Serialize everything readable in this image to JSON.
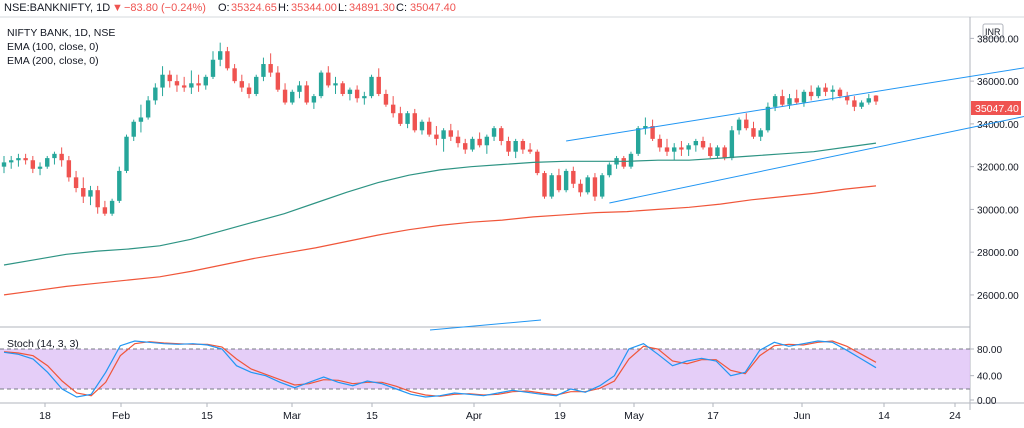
{
  "header": {
    "symbol": "NSE:BANKNIFTY, 1D",
    "change_arrow": "▼",
    "change": "−83.80 (−0.24%)",
    "open_label": "O:",
    "open": "35324.65",
    "high_label": "H:",
    "high": "35344.00",
    "low_label": "L:",
    "low": "34891.30",
    "close_label": "C:",
    "close": "35047.40"
  },
  "legend": {
    "title": "NIFTY BANK, 1D, NSE",
    "ema100": "EMA (100, close, 0)",
    "ema200": "EMA (200, close, 0)"
  },
  "currency": "INR",
  "last_price": "35047.40",
  "stoch_label": "Stoch (14, 3, 3)",
  "colors": {
    "up": "#26a69a",
    "down": "#ef5350",
    "ema100": "#2e9484",
    "ema200": "#f0563a",
    "channel": "#2196f3",
    "stoch_k": "#2196f3",
    "stoch_d": "#f0563a",
    "stoch_band": "#e1c6f7"
  },
  "chart_data": {
    "type": "candlestick",
    "price_axis": {
      "ticks": [
        "38000.00",
        "36000.00",
        "34000.00",
        "32000.00",
        "30000.00",
        "28000.00",
        "26000.00"
      ],
      "range": [
        24500,
        39000
      ]
    },
    "x_ticks": [
      "18",
      "Feb",
      "15",
      "Mar",
      "15",
      "Apr",
      "19",
      "May",
      "17",
      "Jun",
      "14",
      "24"
    ],
    "ohlc": [
      [
        32000,
        32500,
        31700,
        32200
      ],
      [
        32200,
        32500,
        31900,
        32300
      ],
      [
        32300,
        32600,
        32000,
        32400
      ],
      [
        32400,
        32600,
        32100,
        32300
      ],
      [
        32300,
        32500,
        31700,
        31900
      ],
      [
        31900,
        32200,
        31600,
        32000
      ],
      [
        32000,
        32500,
        31900,
        32400
      ],
      [
        32400,
        32700,
        32100,
        32600
      ],
      [
        32600,
        32900,
        32000,
        32300
      ],
      [
        32300,
        32500,
        31300,
        31500
      ],
      [
        31500,
        31800,
        30800,
        31000
      ],
      [
        31000,
        31500,
        30300,
        30600
      ],
      [
        30600,
        31100,
        30200,
        30900
      ],
      [
        30900,
        31100,
        29800,
        30100
      ],
      [
        30100,
        30400,
        29700,
        29800
      ],
      [
        29800,
        30500,
        29700,
        30400
      ],
      [
        30400,
        32000,
        30300,
        31800
      ],
      [
        31800,
        33500,
        31700,
        33400
      ],
      [
        33400,
        34200,
        33200,
        34100
      ],
      [
        34100,
        34900,
        33600,
        34300
      ],
      [
        34300,
        35300,
        34200,
        35100
      ],
      [
        35100,
        35900,
        34900,
        35700
      ],
      [
        35700,
        36700,
        35300,
        36300
      ],
      [
        36300,
        36500,
        35700,
        36000
      ],
      [
        36000,
        36300,
        35500,
        35800
      ],
      [
        35800,
        36200,
        35500,
        35700
      ],
      [
        35700,
        36500,
        35400,
        35900
      ],
      [
        35900,
        36300,
        35500,
        35800
      ],
      [
        35800,
        36300,
        35600,
        36200
      ],
      [
        36200,
        37400,
        36100,
        37000
      ],
      [
        37000,
        37800,
        36700,
        37400
      ],
      [
        37400,
        37600,
        36500,
        36600
      ],
      [
        36600,
        36800,
        35900,
        36000
      ],
      [
        36000,
        36300,
        35500,
        35700
      ],
      [
        35700,
        35900,
        35200,
        35400
      ],
      [
        35400,
        36300,
        35300,
        36200
      ],
      [
        36200,
        37100,
        36000,
        36800
      ],
      [
        36800,
        37300,
        36200,
        36400
      ],
      [
        36400,
        36700,
        35500,
        35600
      ],
      [
        35600,
        35900,
        34900,
        35000
      ],
      [
        35000,
        35600,
        34900,
        35500
      ],
      [
        35500,
        36000,
        35200,
        35800
      ],
      [
        35800,
        36000,
        34900,
        35000
      ],
      [
        35000,
        35400,
        34700,
        35300
      ],
      [
        35300,
        36500,
        35200,
        36400
      ],
      [
        36400,
        36700,
        35700,
        35800
      ],
      [
        35800,
        36200,
        35400,
        35900
      ],
      [
        35900,
        36000,
        35300,
        35400
      ],
      [
        35400,
        35700,
        35100,
        35600
      ],
      [
        35600,
        35800,
        35000,
        35200
      ],
      [
        35200,
        35500,
        34900,
        35300
      ],
      [
        35300,
        36300,
        35200,
        36200
      ],
      [
        36200,
        36600,
        35300,
        35400
      ],
      [
        35400,
        35600,
        34800,
        34900
      ],
      [
        34900,
        35300,
        34300,
        34500
      ],
      [
        34500,
        34800,
        33900,
        34000
      ],
      [
        34000,
        34600,
        33800,
        34500
      ],
      [
        34500,
        34700,
        33600,
        33700
      ],
      [
        33700,
        34200,
        33500,
        34100
      ],
      [
        34100,
        34300,
        33400,
        33500
      ],
      [
        33500,
        33900,
        33000,
        33300
      ],
      [
        33300,
        33800,
        32700,
        33700
      ],
      [
        33700,
        34000,
        33200,
        33400
      ],
      [
        33400,
        33700,
        32900,
        33100
      ],
      [
        33100,
        33300,
        32600,
        32800
      ],
      [
        32800,
        33400,
        32700,
        33300
      ],
      [
        33300,
        33600,
        32900,
        33000
      ],
      [
        33000,
        33500,
        32600,
        33400
      ],
      [
        33400,
        33900,
        33200,
        33800
      ],
      [
        33800,
        33900,
        33000,
        33200
      ],
      [
        33200,
        33400,
        32500,
        32700
      ],
      [
        32700,
        33300,
        32400,
        33200
      ],
      [
        33200,
        33300,
        32600,
        32800
      ],
      [
        32800,
        33100,
        32600,
        32700
      ],
      [
        32700,
        32800,
        31600,
        31700
      ],
      [
        31700,
        31800,
        30500,
        30600
      ],
      [
        30600,
        31700,
        30500,
        31600
      ],
      [
        31600,
        31900,
        30800,
        30900
      ],
      [
        30900,
        31900,
        30800,
        31800
      ],
      [
        31800,
        32000,
        31000,
        31200
      ],
      [
        31200,
        31400,
        30600,
        30800
      ],
      [
        30800,
        31600,
        30700,
        31500
      ],
      [
        31500,
        31700,
        30400,
        30600
      ],
      [
        30600,
        31700,
        30500,
        31600
      ],
      [
        31600,
        32200,
        31500,
        32100
      ],
      [
        32100,
        32500,
        31900,
        32400
      ],
      [
        32400,
        32500,
        31900,
        32000
      ],
      [
        32000,
        32700,
        31900,
        32600
      ],
      [
        32600,
        33900,
        32500,
        33800
      ],
      [
        33800,
        34300,
        33500,
        33900
      ],
      [
        33900,
        34200,
        33200,
        33300
      ],
      [
        33300,
        33500,
        32700,
        32900
      ],
      [
        32900,
        33300,
        32500,
        32700
      ],
      [
        32700,
        33100,
        32300,
        32900
      ],
      [
        32900,
        33200,
        32500,
        32800
      ],
      [
        32800,
        33100,
        32500,
        33000
      ],
      [
        33000,
        33300,
        32700,
        33200
      ],
      [
        33200,
        33400,
        32800,
        32900
      ],
      [
        32900,
        33100,
        32400,
        32500
      ],
      [
        32500,
        33000,
        32400,
        32900
      ],
      [
        32900,
        33000,
        32300,
        32400
      ],
      [
        32400,
        33900,
        32300,
        33700
      ],
      [
        33700,
        34300,
        33500,
        34200
      ],
      [
        34200,
        34500,
        33700,
        33800
      ],
      [
        33800,
        34100,
        33300,
        33400
      ],
      [
        33400,
        33800,
        33200,
        33700
      ],
      [
        33700,
        35000,
        33600,
        34800
      ],
      [
        34800,
        35400,
        34600,
        35300
      ],
      [
        35300,
        35600,
        34800,
        34900
      ],
      [
        34900,
        35400,
        34700,
        35200
      ],
      [
        35200,
        35600,
        34900,
        35000
      ],
      [
        35000,
        35600,
        34800,
        35500
      ],
      [
        35500,
        35800,
        35100,
        35300
      ],
      [
        35300,
        35800,
        35200,
        35700
      ],
      [
        35700,
        35900,
        35300,
        35500
      ],
      [
        35500,
        35800,
        35100,
        35600
      ],
      [
        35600,
        35700,
        35200,
        35300
      ],
      [
        35300,
        35500,
        34900,
        35100
      ],
      [
        35100,
        35300,
        34600,
        34800
      ],
      [
        34800,
        35100,
        34700,
        35000
      ],
      [
        35000,
        35400,
        34900,
        35200
      ],
      [
        35324.65,
        35344.0,
        34891.3,
        35047.4
      ]
    ],
    "ema100": [
      27400,
      27650,
      27900,
      28050,
      28150,
      28300,
      28600,
      29000,
      29400,
      29800,
      30300,
      30800,
      31250,
      31600,
      31850,
      32000,
      32100,
      32200,
      32250,
      32250,
      32250,
      32300,
      32300,
      32400,
      32500,
      32600,
      32700,
      32900,
      33100
    ],
    "ema200": [
      26000,
      26200,
      26400,
      26550,
      26700,
      26850,
      27100,
      27400,
      27700,
      27950,
      28200,
      28500,
      28800,
      29050,
      29250,
      29400,
      29500,
      29650,
      29750,
      29850,
      29900,
      30000,
      30100,
      30250,
      30450,
      30600,
      30750,
      30950,
      31100
    ],
    "stoch": {
      "ticks": [
        "80.00",
        "40.00",
        "0.00"
      ],
      "range": [
        0,
        100
      ],
      "upper_band": 80,
      "lower_band": 20,
      "k": [
        75,
        72,
        65,
        45,
        20,
        8,
        12,
        45,
        85,
        92,
        90,
        88,
        87,
        88,
        86,
        80,
        55,
        45,
        40,
        30,
        22,
        30,
        38,
        30,
        25,
        32,
        28,
        20,
        12,
        8,
        10,
        14,
        12,
        10,
        14,
        18,
        15,
        12,
        10,
        20,
        15,
        25,
        40,
        80,
        88,
        72,
        55,
        62,
        66,
        62,
        40,
        45,
        78,
        90,
        84,
        88,
        92,
        90,
        78,
        65,
        52
      ],
      "d": [
        76,
        74,
        70,
        55,
        32,
        14,
        10,
        30,
        70,
        88,
        91,
        89,
        88,
        87,
        87,
        83,
        65,
        50,
        42,
        34,
        26,
        28,
        34,
        33,
        28,
        30,
        30,
        24,
        16,
        11,
        9,
        12,
        13,
        11,
        12,
        16,
        17,
        14,
        11,
        16,
        16,
        21,
        32,
        65,
        84,
        80,
        62,
        58,
        64,
        64,
        48,
        43,
        70,
        85,
        87,
        86,
        90,
        92,
        84,
        72,
        60
      ]
    }
  }
}
